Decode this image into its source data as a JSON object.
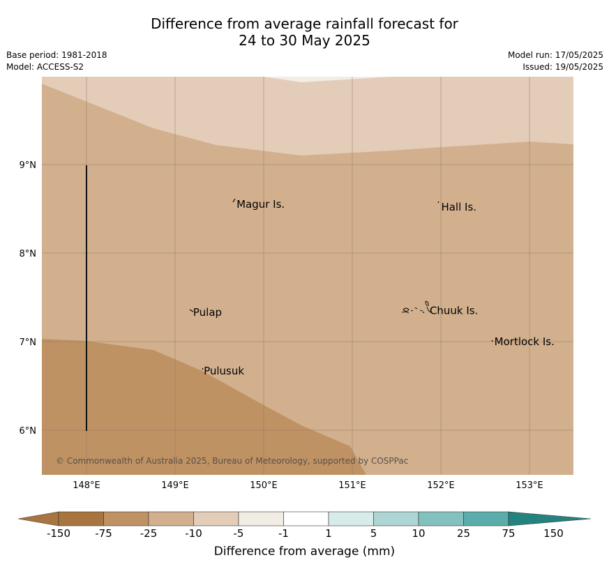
{
  "title_line1": "Difference from average rainfall forecast for",
  "title_line2": "24 to 30 May 2025",
  "base_period": "Base period: 1981-2018",
  "model": "Model: ACCESS-S2",
  "model_run": "Model run: 17/05/2025",
  "issued": "Issued: 19/05/2025",
  "copyright": "© Commonwealth of Australia 2025, Bureau of Meteorology, supported by COSPPac",
  "lon_ticks": [
    "148°E",
    "149°E",
    "150°E",
    "151°E",
    "152°E",
    "153°E"
  ],
  "lat_ticks": [
    "9°N",
    "8°N",
    "7°N",
    "6°N"
  ],
  "places": [
    {
      "name": "Magur Is.",
      "lon": 149.67,
      "lat": 8.55
    },
    {
      "name": "Hall Is.",
      "lon": 151.98,
      "lat": 8.52
    },
    {
      "name": "Pulap",
      "lon": 149.18,
      "lat": 7.33
    },
    {
      "name": "Chuuk Is.",
      "lon": 151.85,
      "lat": 7.35
    },
    {
      "name": "Mortlock Is.",
      "lon": 152.58,
      "lat": 7.0
    },
    {
      "name": "Pulusuk",
      "lon": 149.3,
      "lat": 6.67
    }
  ],
  "colorbar": {
    "title": "Difference from average (mm)",
    "labels": [
      "-150",
      "-75",
      "-25",
      "-10",
      "-5",
      "-1",
      "1",
      "5",
      "10",
      "25",
      "75",
      "150"
    ],
    "colors": [
      "#a87540",
      "#bf9264",
      "#d2b08e",
      "#e3cdb9",
      "#f1ece4",
      "#ffffff",
      "#d7ebe9",
      "#acd5d3",
      "#83c1be",
      "#5aadaa",
      "#309994",
      "#24837e"
    ]
  },
  "map_colors": {
    "mid": "#d2b08e",
    "light": "#e3cdb9",
    "dark": "#bf9264",
    "whitish": "#f1ece4"
  }
}
